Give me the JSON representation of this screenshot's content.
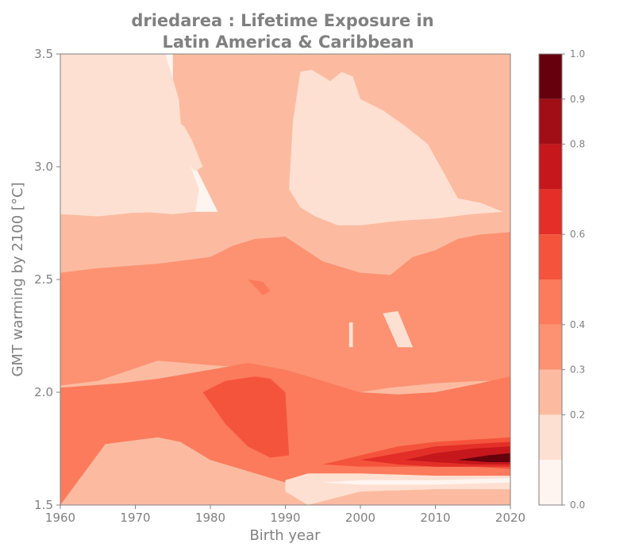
{
  "chart_data": {
    "type": "heatmap",
    "title_line1": "driedarea : Lifetime Exposure in",
    "title_line2": "Latin America & Caribbean",
    "xlabel": "Birth year",
    "ylabel": "GMT warming by 2100 [°C]",
    "xlim": [
      1960,
      2020
    ],
    "ylim": [
      1.5,
      3.5
    ],
    "x_ticks": [
      "1960",
      "1970",
      "1980",
      "1990",
      "2000",
      "2010",
      "2020"
    ],
    "y_ticks": [
      "1.5",
      "2.0",
      "2.5",
      "3.0",
      "3.5"
    ],
    "colorbar": {
      "range": [
        0.0,
        1.0
      ],
      "levels": [
        0.0,
        0.1,
        0.2,
        0.3,
        0.4,
        0.5,
        0.6,
        0.7,
        0.8,
        0.9,
        1.0
      ],
      "tick_labels": [
        {
          "value": 0.0,
          "label": "0.0"
        },
        {
          "value": 0.2,
          "label": "0.2"
        },
        {
          "value": 0.3,
          "label": "0.3"
        },
        {
          "value": 0.4,
          "label": "0.4"
        },
        {
          "value": 0.6,
          "label": "0.6"
        },
        {
          "value": 0.8,
          "label": "0.8"
        },
        {
          "value": 0.9,
          "label": "0.9"
        },
        {
          "value": 1.0,
          "label": "1.0"
        }
      ],
      "colors": [
        "#fff5f0",
        "#fee0d2",
        "#fcbba1",
        "#fc9272",
        "#fb7b5c",
        "#f5543c",
        "#e32f27",
        "#c5171c",
        "#a10e15",
        "#67000d"
      ]
    },
    "regions": [
      {
        "level": 0,
        "x": [
          1960,
          1967,
          1970,
          1975,
          1975,
          1976,
          1978,
          1981,
          1978,
          1975,
          1975,
          1973,
          1965,
          1960
        ],
        "y": [
          3.5,
          3.5,
          3.5,
          3.5,
          3.3,
          3.2,
          3.0,
          2.8,
          2.8,
          2.8,
          2.9,
          2.8,
          2.79,
          2.79
        ]
      },
      {
        "level": 1,
        "x": [
          1960,
          1971,
          1974,
          1975.8,
          1976.3,
          1978.5,
          1978,
          1975,
          1971,
          1965,
          1960
        ],
        "y": [
          3.5,
          3.5,
          3.5,
          3.3,
          3.1,
          2.9,
          2.8,
          2.79,
          2.8,
          2.78,
          2.79
        ]
      },
      {
        "level": 1,
        "x": [
          1975.5,
          1976.5,
          1977.5,
          1979,
          1978,
          1976,
          1975.5
        ],
        "y": [
          3.2,
          3.18,
          3.12,
          3.0,
          2.98,
          3.05,
          3.2
        ]
      },
      {
        "level": 1,
        "x": [
          1992,
          1993.5,
          1995,
          1996,
          1997.5,
          1999,
          2000,
          2003,
          2006,
          2009,
          2011,
          2013,
          2016,
          2019,
          2015,
          2010,
          2005,
          2000,
          1997,
          1994,
          1992,
          1990.5,
          1991,
          1992
        ],
        "y": [
          3.42,
          3.43,
          3.4,
          3.38,
          3.42,
          3.4,
          3.3,
          3.25,
          3.18,
          3.1,
          2.98,
          2.86,
          2.84,
          2.8,
          2.79,
          2.77,
          2.76,
          2.74,
          2.74,
          2.78,
          2.82,
          2.9,
          3.2,
          3.42
        ]
      },
      {
        "level": 3,
        "x": [
          1960,
          1965,
          1973,
          1980,
          1983,
          1986,
          1990,
          1995,
          2000,
          2004,
          2007,
          2010,
          2013,
          2016,
          2020,
          2020,
          2016,
          2010,
          2007,
          2004,
          2000,
          1995,
          1990,
          1985,
          1980,
          1973,
          1965,
          1960
        ],
        "y": [
          2.53,
          2.55,
          2.57,
          2.6,
          2.65,
          2.68,
          2.69,
          2.58,
          2.53,
          2.52,
          2.6,
          2.63,
          2.68,
          2.7,
          2.71,
          2.05,
          2.05,
          2.04,
          2.03,
          2.02,
          2.0,
          2.05,
          2.09,
          2.11,
          2.12,
          2.14,
          2.05,
          2.03
        ]
      },
      {
        "level": 4,
        "x": [
          1960,
          1968,
          1973,
          1980,
          1985,
          1990,
          1995,
          2000,
          2005,
          2010,
          2016,
          2020,
          2020,
          2016,
          2010,
          2005,
          2000,
          1995,
          1990,
          1985,
          1980,
          1976,
          1973,
          1966,
          1960
        ],
        "y": [
          2.02,
          2.04,
          2.06,
          2.1,
          2.13,
          2.1,
          2.05,
          2.0,
          1.99,
          2.0,
          2.04,
          2.07,
          1.6,
          1.6,
          1.6,
          1.6,
          1.6,
          1.6,
          1.6,
          1.65,
          1.7,
          1.78,
          1.8,
          1.77,
          1.5
        ]
      },
      {
        "level": 5,
        "x": [
          1979,
          1982,
          1986,
          1988,
          1990,
          1990.5,
          1988,
          1985,
          1982,
          1979
        ],
        "y": [
          2.0,
          2.05,
          2.07,
          2.06,
          2.0,
          1.72,
          1.71,
          1.76,
          1.86,
          2.0
        ]
      },
      {
        "level": 5,
        "x": [
          1995,
          2000,
          2005,
          2010,
          2015,
          2020,
          2020,
          2015,
          2010,
          2005,
          2000,
          1995
        ],
        "y": [
          1.68,
          1.72,
          1.76,
          1.78,
          1.79,
          1.8,
          1.66,
          1.67,
          1.67,
          1.67,
          1.67,
          1.68
        ]
      },
      {
        "level": 6,
        "x": [
          2000,
          2005,
          2010,
          2015,
          2020,
          2020,
          2015,
          2010,
          2005,
          2000
        ],
        "y": [
          1.7,
          1.73,
          1.76,
          1.77,
          1.78,
          1.67,
          1.67,
          1.67,
          1.68,
          1.7
        ]
      },
      {
        "level": 7,
        "x": [
          2006,
          2010,
          2015,
          2020,
          2020,
          2015,
          2010,
          2006
        ],
        "y": [
          1.7,
          1.73,
          1.75,
          1.76,
          1.68,
          1.68,
          1.69,
          1.7
        ]
      },
      {
        "level": 9,
        "x": [
          2013,
          2017,
          2020,
          2020,
          2017,
          2013
        ],
        "y": [
          1.7,
          1.72,
          1.73,
          1.69,
          1.69,
          1.7
        ]
      },
      {
        "level": 1,
        "x": [
          1990,
          1993,
          2000,
          2010,
          2020,
          2020,
          2010,
          2000,
          1993,
          1990
        ],
        "y": [
          1.61,
          1.64,
          1.64,
          1.63,
          1.63,
          1.57,
          1.57,
          1.56,
          1.5,
          1.56
        ]
      },
      {
        "level": 0,
        "x": [
          1995,
          2000,
          2010,
          2020,
          2020,
          2010,
          2000,
          1995
        ],
        "y": [
          1.6,
          1.61,
          1.61,
          1.62,
          1.6,
          1.59,
          1.59,
          1.6
        ]
      },
      {
        "level": 4,
        "x": [
          1985,
          1987,
          1988,
          1987,
          1985
        ],
        "y": [
          2.5,
          2.49,
          2.45,
          2.43,
          2.5
        ]
      },
      {
        "level": 1,
        "x": [
          1998.5,
          1999,
          1999,
          1998.5
        ],
        "y": [
          2.31,
          2.31,
          2.2,
          2.2
        ]
      },
      {
        "level": 1,
        "x": [
          2003,
          2005,
          2007,
          2005,
          2003
        ],
        "y": [
          2.35,
          2.36,
          2.2,
          2.2,
          2.35
        ]
      }
    ]
  }
}
